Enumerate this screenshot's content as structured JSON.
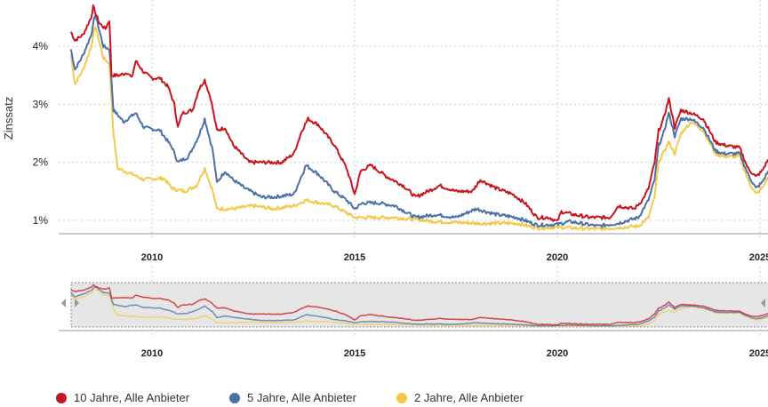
{
  "chart_data": {
    "type": "line",
    "title": "",
    "xlabel": "",
    "ylabel": "Zinssatz",
    "xlim": [
      2008.0,
      2025.2
    ],
    "ylim": [
      0.75,
      4.75
    ],
    "x_ticks": [
      "2010",
      "2015",
      "2020",
      "2025"
    ],
    "y_ticks": [
      "1%",
      "2%",
      "3%",
      "4%"
    ],
    "grid": true,
    "legend_position": "bottom-left",
    "navigator": true,
    "series": [
      {
        "name": "10 Jahre, Alle Anbieter",
        "color": "#c8141e",
        "points": [
          [
            2008.0,
            4.25
          ],
          [
            2008.1,
            4.1
          ],
          [
            2008.3,
            4.2
          ],
          [
            2008.5,
            4.5
          ],
          [
            2008.55,
            4.68
          ],
          [
            2008.7,
            4.4
          ],
          [
            2008.85,
            4.3
          ],
          [
            2008.95,
            4.45
          ],
          [
            2009.0,
            3.5
          ],
          [
            2009.2,
            3.5
          ],
          [
            2009.4,
            3.55
          ],
          [
            2009.5,
            3.45
          ],
          [
            2009.6,
            3.75
          ],
          [
            2009.8,
            3.55
          ],
          [
            2010.0,
            3.45
          ],
          [
            2010.2,
            3.45
          ],
          [
            2010.4,
            3.3
          ],
          [
            2010.55,
            3.0
          ],
          [
            2010.64,
            2.6
          ],
          [
            2010.75,
            2.85
          ],
          [
            2011.0,
            2.9
          ],
          [
            2011.15,
            3.25
          ],
          [
            2011.3,
            3.42
          ],
          [
            2011.45,
            3.1
          ],
          [
            2011.6,
            2.55
          ],
          [
            2011.8,
            2.6
          ],
          [
            2012.0,
            2.3
          ],
          [
            2012.2,
            2.15
          ],
          [
            2012.4,
            2.0
          ],
          [
            2012.8,
            2.0
          ],
          [
            2013.2,
            2.0
          ],
          [
            2013.5,
            2.15
          ],
          [
            2013.7,
            2.55
          ],
          [
            2013.85,
            2.75
          ],
          [
            2014.1,
            2.65
          ],
          [
            2014.5,
            2.3
          ],
          [
            2014.8,
            1.9
          ],
          [
            2015.0,
            1.45
          ],
          [
            2015.15,
            1.85
          ],
          [
            2015.4,
            1.95
          ],
          [
            2015.8,
            1.75
          ],
          [
            2016.2,
            1.6
          ],
          [
            2016.5,
            1.4
          ],
          [
            2016.8,
            1.5
          ],
          [
            2017.1,
            1.6
          ],
          [
            2017.5,
            1.5
          ],
          [
            2017.9,
            1.5
          ],
          [
            2018.1,
            1.7
          ],
          [
            2018.5,
            1.55
          ],
          [
            2018.9,
            1.45
          ],
          [
            2019.2,
            1.3
          ],
          [
            2019.5,
            1.05
          ],
          [
            2019.8,
            1.05
          ],
          [
            2020.0,
            0.98
          ],
          [
            2020.1,
            1.15
          ],
          [
            2020.4,
            1.1
          ],
          [
            2020.8,
            1.05
          ],
          [
            2021.3,
            1.05
          ],
          [
            2021.5,
            1.25
          ],
          [
            2021.9,
            1.2
          ],
          [
            2022.1,
            1.35
          ],
          [
            2022.25,
            1.55
          ],
          [
            2022.4,
            2.0
          ],
          [
            2022.5,
            2.55
          ],
          [
            2022.6,
            2.7
          ],
          [
            2022.75,
            3.1
          ],
          [
            2022.9,
            2.6
          ],
          [
            2023.05,
            2.9
          ],
          [
            2023.3,
            2.85
          ],
          [
            2023.6,
            2.75
          ],
          [
            2023.9,
            2.35
          ],
          [
            2024.1,
            2.3
          ],
          [
            2024.5,
            2.25
          ],
          [
            2024.7,
            1.9
          ],
          [
            2024.9,
            1.75
          ],
          [
            2025.05,
            1.85
          ],
          [
            2025.2,
            2.05
          ]
        ]
      },
      {
        "name": "5 Jahre, Alle Anbieter",
        "color": "#4a72a6",
        "points": [
          [
            2008.0,
            3.95
          ],
          [
            2008.1,
            3.6
          ],
          [
            2008.3,
            3.85
          ],
          [
            2008.5,
            4.2
          ],
          [
            2008.6,
            4.55
          ],
          [
            2008.8,
            4.0
          ],
          [
            2008.95,
            3.95
          ],
          [
            2009.05,
            2.9
          ],
          [
            2009.3,
            2.7
          ],
          [
            2009.6,
            2.85
          ],
          [
            2009.8,
            2.6
          ],
          [
            2010.2,
            2.55
          ],
          [
            2010.5,
            2.25
          ],
          [
            2010.64,
            2.0
          ],
          [
            2010.9,
            2.1
          ],
          [
            2011.15,
            2.45
          ],
          [
            2011.3,
            2.75
          ],
          [
            2011.5,
            2.2
          ],
          [
            2011.6,
            1.65
          ],
          [
            2011.8,
            1.85
          ],
          [
            2012.0,
            1.7
          ],
          [
            2012.3,
            1.55
          ],
          [
            2012.7,
            1.4
          ],
          [
            2013.0,
            1.4
          ],
          [
            2013.5,
            1.45
          ],
          [
            2013.65,
            1.7
          ],
          [
            2013.8,
            1.95
          ],
          [
            2014.1,
            1.8
          ],
          [
            2014.5,
            1.5
          ],
          [
            2014.8,
            1.35
          ],
          [
            2015.0,
            1.2
          ],
          [
            2015.2,
            1.3
          ],
          [
            2015.6,
            1.3
          ],
          [
            2016.0,
            1.25
          ],
          [
            2016.5,
            1.05
          ],
          [
            2017.0,
            1.1
          ],
          [
            2017.5,
            1.05
          ],
          [
            2018.0,
            1.2
          ],
          [
            2018.5,
            1.1
          ],
          [
            2019.0,
            1.05
          ],
          [
            2019.5,
            0.92
          ],
          [
            2020.0,
            0.93
          ],
          [
            2020.3,
            0.98
          ],
          [
            2021.0,
            0.9
          ],
          [
            2021.5,
            0.95
          ],
          [
            2022.0,
            1.05
          ],
          [
            2022.25,
            1.35
          ],
          [
            2022.4,
            1.7
          ],
          [
            2022.5,
            2.3
          ],
          [
            2022.6,
            2.45
          ],
          [
            2022.75,
            2.85
          ],
          [
            2022.9,
            2.45
          ],
          [
            2023.05,
            2.75
          ],
          [
            2023.3,
            2.75
          ],
          [
            2023.6,
            2.6
          ],
          [
            2023.9,
            2.2
          ],
          [
            2024.1,
            2.15
          ],
          [
            2024.5,
            2.15
          ],
          [
            2024.7,
            1.8
          ],
          [
            2024.9,
            1.55
          ],
          [
            2025.05,
            1.65
          ],
          [
            2025.2,
            1.85
          ]
        ]
      },
      {
        "name": "2 Jahre, Alle Anbieter",
        "color": "#f2c94c",
        "points": [
          [
            2008.0,
            3.85
          ],
          [
            2008.1,
            3.35
          ],
          [
            2008.3,
            3.6
          ],
          [
            2008.5,
            4.0
          ],
          [
            2008.6,
            4.35
          ],
          [
            2008.8,
            3.8
          ],
          [
            2008.95,
            3.7
          ],
          [
            2009.05,
            2.5
          ],
          [
            2009.15,
            1.9
          ],
          [
            2009.5,
            1.8
          ],
          [
            2009.8,
            1.7
          ],
          [
            2010.0,
            1.72
          ],
          [
            2010.3,
            1.72
          ],
          [
            2010.5,
            1.55
          ],
          [
            2010.8,
            1.5
          ],
          [
            2011.1,
            1.6
          ],
          [
            2011.3,
            1.9
          ],
          [
            2011.5,
            1.5
          ],
          [
            2011.6,
            1.2
          ],
          [
            2012.0,
            1.2
          ],
          [
            2012.5,
            1.25
          ],
          [
            2013.0,
            1.2
          ],
          [
            2013.5,
            1.25
          ],
          [
            2013.8,
            1.35
          ],
          [
            2014.5,
            1.25
          ],
          [
            2015.0,
            1.05
          ],
          [
            2016.0,
            1.05
          ],
          [
            2017.0,
            0.98
          ],
          [
            2018.0,
            0.95
          ],
          [
            2019.0,
            0.95
          ],
          [
            2019.5,
            0.87
          ],
          [
            2020.0,
            0.88
          ],
          [
            2021.0,
            0.85
          ],
          [
            2022.0,
            0.9
          ],
          [
            2022.25,
            1.05
          ],
          [
            2022.4,
            1.4
          ],
          [
            2022.5,
            2.0
          ],
          [
            2022.75,
            2.35
          ],
          [
            2022.9,
            2.15
          ],
          [
            2023.05,
            2.5
          ],
          [
            2023.3,
            2.7
          ],
          [
            2023.6,
            2.55
          ],
          [
            2023.9,
            2.15
          ],
          [
            2024.1,
            2.1
          ],
          [
            2024.5,
            2.1
          ],
          [
            2024.7,
            1.7
          ],
          [
            2024.9,
            1.45
          ],
          [
            2025.05,
            1.55
          ],
          [
            2025.2,
            1.75
          ]
        ]
      }
    ]
  }
}
